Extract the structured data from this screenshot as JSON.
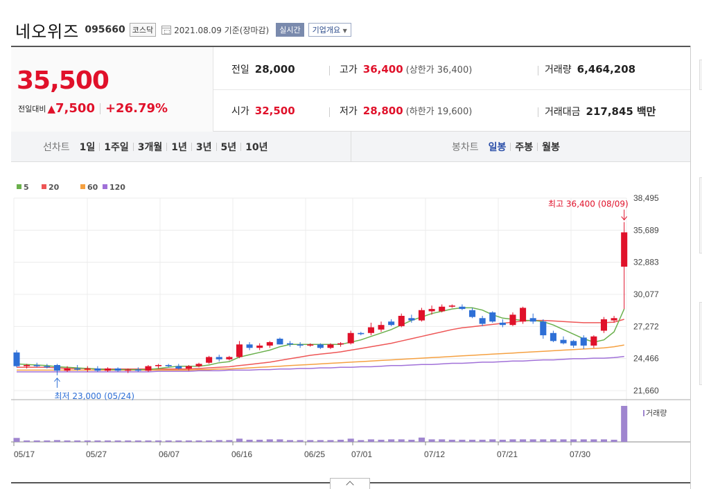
{
  "header": {
    "stock_name": "네오위즈",
    "stock_code": "095660",
    "market": "코스닥",
    "base_date": "2021.08.09 기준(장마감)",
    "realtime_label": "실시간",
    "company_label": "기업개요"
  },
  "price": {
    "current": "35,500",
    "change_label": "전일대비",
    "change_value": "7,500",
    "change_pct": "+26.79%"
  },
  "stats": {
    "prev_label": "전일",
    "prev_value": "28,000",
    "high_label": "고가",
    "high_value": "36,400",
    "upper_limit": "(상한가 36,400)",
    "volume_label": "거래량",
    "volume_value": "6,464,208",
    "open_label": "시가",
    "open_value": "32,500",
    "low_label": "저가",
    "low_value": "28,800",
    "lower_limit": "(하한가 19,600)",
    "amount_label": "거래대금",
    "amount_value": "217,845",
    "amount_unit": "백만"
  },
  "tabs": {
    "line_title": "선차트",
    "line_tabs": [
      "1일",
      "1주일",
      "3개월",
      "1년",
      "3년",
      "5년",
      "10년"
    ],
    "candle_title": "봉차트",
    "candle_tabs": [
      "일봉",
      "주봉",
      "월봉"
    ],
    "active_candle": "일봉"
  },
  "colors": {
    "up": "#e0112a",
    "down": "#2e6fd6",
    "ma5": "#6ab04c",
    "ma20": "#ee5555",
    "ma60": "#f5a040",
    "ma120": "#a070d8",
    "volume": "#9f85cf"
  },
  "chart_data": {
    "type": "candlestick",
    "x_ticks": [
      "05/17",
      "05/27",
      "06/07",
      "06/16",
      "06/25",
      "07/01",
      "07/12",
      "07/21",
      "07/30"
    ],
    "y_ticks": [
      "38,495",
      "35,689",
      "32,883",
      "30,077",
      "27,272",
      "24,466",
      "21,660"
    ],
    "ylim": [
      21660,
      38495
    ],
    "legend": [
      "5",
      "20",
      "60",
      "120"
    ],
    "volume_label": "거래량",
    "high_annotation": "최고 36,400 (08/09)",
    "low_annotation": "최저 23,000 (05/24)",
    "candles": [
      {
        "d": "05/17",
        "o": 25000,
        "h": 25200,
        "l": 23700,
        "c": 23800
      },
      {
        "d": "05/18",
        "o": 23800,
        "h": 24000,
        "l": 23600,
        "c": 23900
      },
      {
        "d": "05/20",
        "o": 23900,
        "h": 24100,
        "l": 23700,
        "c": 23800
      },
      {
        "d": "05/21",
        "o": 23800,
        "h": 24000,
        "l": 23600,
        "c": 23700
      },
      {
        "d": "05/24",
        "o": 23900,
        "h": 24000,
        "l": 23000,
        "c": 23400
      },
      {
        "d": "05/25",
        "o": 23400,
        "h": 23800,
        "l": 23300,
        "c": 23600
      },
      {
        "d": "05/26",
        "o": 23600,
        "h": 23900,
        "l": 23400,
        "c": 23500
      },
      {
        "d": "05/27",
        "o": 23500,
        "h": 23800,
        "l": 23300,
        "c": 23600
      },
      {
        "d": "05/28",
        "o": 23600,
        "h": 23800,
        "l": 23300,
        "c": 23400
      },
      {
        "d": "05/31",
        "o": 23400,
        "h": 23700,
        "l": 23300,
        "c": 23600
      },
      {
        "d": "06/01",
        "o": 23600,
        "h": 23700,
        "l": 23300,
        "c": 23400
      },
      {
        "d": "06/02",
        "o": 23400,
        "h": 23600,
        "l": 23200,
        "c": 23500
      },
      {
        "d": "06/03",
        "o": 23500,
        "h": 23700,
        "l": 23300,
        "c": 23400
      },
      {
        "d": "06/04",
        "o": 23400,
        "h": 23900,
        "l": 23300,
        "c": 23800
      },
      {
        "d": "06/07",
        "o": 23800,
        "h": 24000,
        "l": 23600,
        "c": 23900
      },
      {
        "d": "06/08",
        "o": 23900,
        "h": 24000,
        "l": 23700,
        "c": 23800
      },
      {
        "d": "06/09",
        "o": 23800,
        "h": 24000,
        "l": 23500,
        "c": 23600
      },
      {
        "d": "06/10",
        "o": 23600,
        "h": 23900,
        "l": 23400,
        "c": 23800
      },
      {
        "d": "06/11",
        "o": 23800,
        "h": 24100,
        "l": 23700,
        "c": 24000
      },
      {
        "d": "06/14",
        "o": 24100,
        "h": 24700,
        "l": 24000,
        "c": 24600
      },
      {
        "d": "06/15",
        "o": 24600,
        "h": 24800,
        "l": 24200,
        "c": 24400
      },
      {
        "d": "06/16",
        "o": 24400,
        "h": 24700,
        "l": 24300,
        "c": 24600
      },
      {
        "d": "06/17",
        "o": 24600,
        "h": 26000,
        "l": 24500,
        "c": 25700
      },
      {
        "d": "06/18",
        "o": 25700,
        "h": 25900,
        "l": 25200,
        "c": 25400
      },
      {
        "d": "06/21",
        "o": 25400,
        "h": 25800,
        "l": 25200,
        "c": 25600
      },
      {
        "d": "06/22",
        "o": 25600,
        "h": 26000,
        "l": 25400,
        "c": 25900
      },
      {
        "d": "06/23",
        "o": 26200,
        "h": 26300,
        "l": 25700,
        "c": 25700
      },
      {
        "d": "06/24",
        "o": 25800,
        "h": 26000,
        "l": 25500,
        "c": 25700
      },
      {
        "d": "06/25",
        "o": 25700,
        "h": 25900,
        "l": 25400,
        "c": 25600
      },
      {
        "d": "06/28",
        "o": 25600,
        "h": 25800,
        "l": 25500,
        "c": 25700
      },
      {
        "d": "06/29",
        "o": 25700,
        "h": 25800,
        "l": 25300,
        "c": 25400
      },
      {
        "d": "06/30",
        "o": 25400,
        "h": 25800,
        "l": 25300,
        "c": 25700
      },
      {
        "d": "07/01",
        "o": 25700,
        "h": 25900,
        "l": 25500,
        "c": 25800
      },
      {
        "d": "07/02",
        "o": 25800,
        "h": 26900,
        "l": 25700,
        "c": 26700
      },
      {
        "d": "07/05",
        "o": 26700,
        "h": 26800,
        "l": 26500,
        "c": 26600
      },
      {
        "d": "07/06",
        "o": 26700,
        "h": 27600,
        "l": 26500,
        "c": 27200
      },
      {
        "d": "07/07",
        "o": 27000,
        "h": 27700,
        "l": 26800,
        "c": 27400
      },
      {
        "d": "07/08",
        "o": 27700,
        "h": 27900,
        "l": 27300,
        "c": 27400
      },
      {
        "d": "07/09",
        "o": 27300,
        "h": 28400,
        "l": 27200,
        "c": 28200
      },
      {
        "d": "07/12",
        "o": 28000,
        "h": 28300,
        "l": 27600,
        "c": 27800
      },
      {
        "d": "07/13",
        "o": 27800,
        "h": 28900,
        "l": 27700,
        "c": 28700
      },
      {
        "d": "07/14",
        "o": 28600,
        "h": 29100,
        "l": 28300,
        "c": 28800
      },
      {
        "d": "07/15",
        "o": 28600,
        "h": 29200,
        "l": 28500,
        "c": 29000
      },
      {
        "d": "07/16",
        "o": 29000,
        "h": 29200,
        "l": 28900,
        "c": 29100
      },
      {
        "d": "07/19",
        "o": 29000,
        "h": 29200,
        "l": 28700,
        "c": 28800
      },
      {
        "d": "07/20",
        "o": 28700,
        "h": 28900,
        "l": 28000,
        "c": 28100
      },
      {
        "d": "07/21",
        "o": 28000,
        "h": 28200,
        "l": 27300,
        "c": 27500
      },
      {
        "d": "07/22",
        "o": 28500,
        "h": 28600,
        "l": 27600,
        "c": 27700
      },
      {
        "d": "07/23",
        "o": 27600,
        "h": 27900,
        "l": 27200,
        "c": 27400
      },
      {
        "d": "07/26",
        "o": 27400,
        "h": 28500,
        "l": 27300,
        "c": 28300
      },
      {
        "d": "07/27",
        "o": 27700,
        "h": 29000,
        "l": 27500,
        "c": 28900
      },
      {
        "d": "07/28",
        "o": 28000,
        "h": 28400,
        "l": 27500,
        "c": 27700
      },
      {
        "d": "07/29",
        "o": 27700,
        "h": 27900,
        "l": 26200,
        "c": 26500
      },
      {
        "d": "07/30",
        "o": 26700,
        "h": 26900,
        "l": 25900,
        "c": 26000
      },
      {
        "d": "08/02",
        "o": 26100,
        "h": 26400,
        "l": 25700,
        "c": 25800
      },
      {
        "d": "08/03",
        "o": 26000,
        "h": 26100,
        "l": 25400,
        "c": 25600
      },
      {
        "d": "08/04",
        "o": 26300,
        "h": 26500,
        "l": 25300,
        "c": 25600
      },
      {
        "d": "08/05",
        "o": 25600,
        "h": 26500,
        "l": 25400,
        "c": 26400
      },
      {
        "d": "08/06",
        "o": 26900,
        "h": 28100,
        "l": 26700,
        "c": 27900
      },
      {
        "d": "08/06b",
        "o": 27800,
        "h": 28200,
        "l": 27600,
        "c": 28000
      },
      {
        "d": "08/09",
        "o": 32500,
        "h": 36400,
        "l": 28800,
        "c": 35500
      }
    ],
    "volumes": [
      0.11,
      0.04,
      0.04,
      0.04,
      0.05,
      0.04,
      0.04,
      0.04,
      0.04,
      0.04,
      0.04,
      0.04,
      0.04,
      0.04,
      0.04,
      0.04,
      0.04,
      0.04,
      0.04,
      0.04,
      0.05,
      0.05,
      0.09,
      0.06,
      0.06,
      0.07,
      0.07,
      0.05,
      0.05,
      0.05,
      0.05,
      0.05,
      0.06,
      0.09,
      0.05,
      0.07,
      0.06,
      0.07,
      0.07,
      0.06,
      0.12,
      0.07,
      0.07,
      0.06,
      0.06,
      0.06,
      0.06,
      0.07,
      0.06,
      0.07,
      0.07,
      0.07,
      0.07,
      0.07,
      0.07,
      0.07,
      0.07,
      0.07,
      0.07,
      0.06,
      1.0
    ],
    "ma5": [
      24000,
      23950,
      23900,
      23850,
      23750,
      23700,
      23650,
      23600,
      23550,
      23500,
      23500,
      23500,
      23500,
      23500,
      23600,
      23700,
      23800,
      23800,
      23800,
      23900,
      24100,
      24200,
      24600,
      24800,
      25000,
      25200,
      25500,
      25700,
      25700,
      25700,
      25700,
      25700,
      25700,
      25900,
      26100,
      26400,
      26700,
      27000,
      27400,
      27800,
      28100,
      28400,
      28600,
      28800,
      28900,
      28900,
      28700,
      28300,
      28000,
      27900,
      27800,
      27800,
      27700,
      27400,
      27000,
      26600,
      26200,
      25900,
      26100,
      26800,
      28800
    ],
    "ma20": [
      23700,
      23700,
      23700,
      23700,
      23650,
      23600,
      23600,
      23600,
      23550,
      23550,
      23550,
      23550,
      23550,
      23550,
      23550,
      23550,
      23550,
      23550,
      23600,
      23650,
      23700,
      23750,
      23850,
      23950,
      24050,
      24150,
      24300,
      24450,
      24600,
      24750,
      24850,
      24950,
      25050,
      25200,
      25350,
      25500,
      25650,
      25800,
      26000,
      26200,
      26400,
      26600,
      26800,
      27000,
      27150,
      27250,
      27350,
      27450,
      27550,
      27650,
      27750,
      27800,
      27800,
      27750,
      27700,
      27650,
      27600,
      27600,
      27600,
      27650,
      27900
    ],
    "ma60": [
      23450,
      23450,
      23450,
      23450,
      23450,
      23450,
      23450,
      23450,
      23450,
      23450,
      23450,
      23450,
      23450,
      23450,
      23450,
      23450,
      23450,
      23450,
      23500,
      23500,
      23550,
      23550,
      23600,
      23650,
      23700,
      23750,
      23800,
      23850,
      23900,
      23950,
      24000,
      24050,
      24100,
      24150,
      24200,
      24250,
      24300,
      24350,
      24400,
      24450,
      24500,
      24550,
      24600,
      24650,
      24700,
      24750,
      24800,
      24850,
      24900,
      24950,
      25000,
      25050,
      25100,
      25150,
      25200,
      25250,
      25300,
      25350,
      25400,
      25500,
      25650
    ],
    "ma120": [
      23300,
      23300,
      23300,
      23300,
      23300,
      23300,
      23300,
      23300,
      23300,
      23300,
      23300,
      23300,
      23300,
      23300,
      23350,
      23350,
      23350,
      23350,
      23400,
      23400,
      23400,
      23450,
      23450,
      23450,
      23500,
      23500,
      23550,
      23550,
      23600,
      23600,
      23650,
      23650,
      23700,
      23700,
      23750,
      23750,
      23800,
      23850,
      23850,
      23900,
      23950,
      23950,
      24000,
      24050,
      24050,
      24100,
      24150,
      24150,
      24200,
      24250,
      24250,
      24300,
      24350,
      24350,
      24400,
      24450,
      24450,
      24500,
      24500,
      24550,
      24650
    ]
  }
}
